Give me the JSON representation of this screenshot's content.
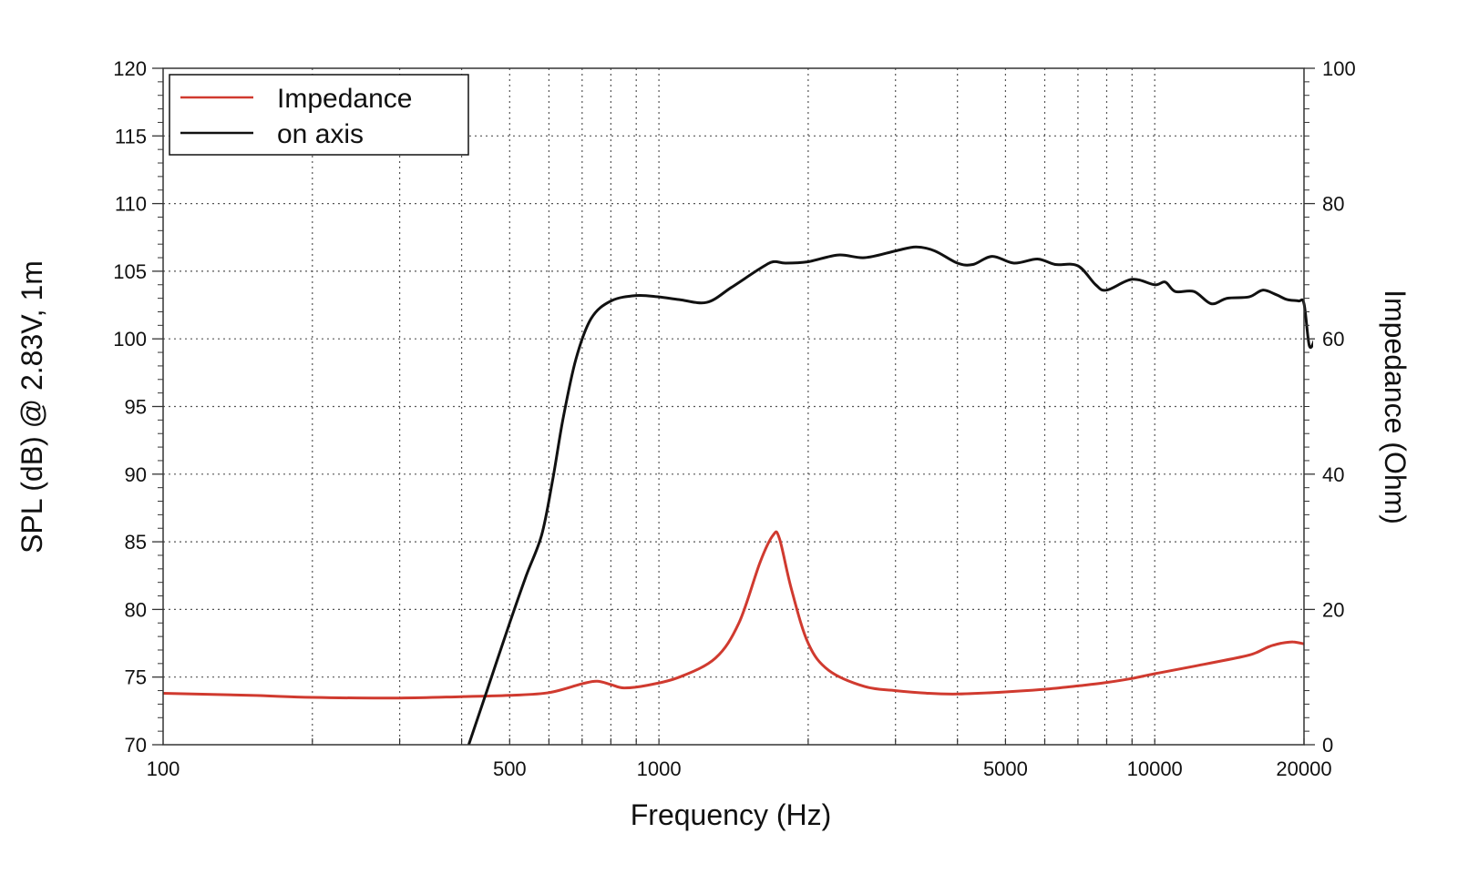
{
  "chart_data": {
    "type": "line",
    "xlabel": "Frequency (Hz)",
    "ylabel_left": "SPL (dB) @ 2.83V, 1m",
    "ylabel_right": "Impedance (Ohm)",
    "x_scale": "log",
    "xlim": [
      100,
      20000
    ],
    "ylim_left": [
      70,
      120
    ],
    "ylim_right": [
      0,
      100
    ],
    "grid": true,
    "legend_position": "top-left",
    "x_ticks": [
      {
        "value": 100,
        "label": "100"
      },
      {
        "value": 500,
        "label": "500"
      },
      {
        "value": 1000,
        "label": "1000"
      },
      {
        "value": 5000,
        "label": "5000"
      },
      {
        "value": 10000,
        "label": "10000"
      },
      {
        "value": 20000,
        "label": "20000"
      }
    ],
    "y_left_ticks": [
      "70",
      "75",
      "80",
      "85",
      "90",
      "95",
      "100",
      "105",
      "110",
      "115",
      "120"
    ],
    "y_right_ticks": [
      "0",
      "20",
      "40",
      "60",
      "80",
      "100"
    ],
    "series": [
      {
        "name": "Impedance",
        "axis": "right",
        "color": "#d03a2f",
        "points": [
          [
            100,
            7.6
          ],
          [
            150,
            7.3
          ],
          [
            200,
            7.0
          ],
          [
            300,
            6.9
          ],
          [
            400,
            7.1
          ],
          [
            500,
            7.3
          ],
          [
            600,
            7.7
          ],
          [
            700,
            9.0
          ],
          [
            750,
            9.4
          ],
          [
            800,
            8.9
          ],
          [
            850,
            8.4
          ],
          [
            950,
            8.8
          ],
          [
            1100,
            10.0
          ],
          [
            1300,
            12.8
          ],
          [
            1450,
            18.0
          ],
          [
            1600,
            27.0
          ],
          [
            1700,
            31.0
          ],
          [
            1750,
            30.5
          ],
          [
            1850,
            23.0
          ],
          [
            2000,
            15.0
          ],
          [
            2200,
            11.0
          ],
          [
            2600,
            8.6
          ],
          [
            3000,
            8.0
          ],
          [
            3500,
            7.6
          ],
          [
            4000,
            7.5
          ],
          [
            5000,
            7.8
          ],
          [
            6000,
            8.2
          ],
          [
            7000,
            8.7
          ],
          [
            8000,
            9.2
          ],
          [
            9000,
            9.8
          ],
          [
            10000,
            10.5
          ],
          [
            12000,
            11.6
          ],
          [
            15000,
            13.0
          ],
          [
            16000,
            13.6
          ],
          [
            17000,
            14.5
          ],
          [
            18000,
            15.0
          ],
          [
            19000,
            15.2
          ],
          [
            20000,
            14.9
          ]
        ]
      },
      {
        "name": "on axis",
        "axis": "left",
        "color": "#111111",
        "points": [
          [
            410,
            69.6
          ],
          [
            450,
            74.0
          ],
          [
            500,
            79.0
          ],
          [
            540,
            82.5
          ],
          [
            580,
            85.5
          ],
          [
            610,
            89.5
          ],
          [
            640,
            94.0
          ],
          [
            680,
            98.5
          ],
          [
            730,
            101.5
          ],
          [
            800,
            102.8
          ],
          [
            900,
            103.2
          ],
          [
            1000,
            103.1
          ],
          [
            1100,
            102.9
          ],
          [
            1250,
            102.7
          ],
          [
            1400,
            103.8
          ],
          [
            1600,
            105.2
          ],
          [
            1700,
            105.7
          ],
          [
            1800,
            105.6
          ],
          [
            2000,
            105.7
          ],
          [
            2300,
            106.2
          ],
          [
            2600,
            106.0
          ],
          [
            3000,
            106.5
          ],
          [
            3300,
            106.8
          ],
          [
            3600,
            106.5
          ],
          [
            4000,
            105.6
          ],
          [
            4300,
            105.5
          ],
          [
            4700,
            106.1
          ],
          [
            5200,
            105.6
          ],
          [
            5800,
            105.9
          ],
          [
            6300,
            105.5
          ],
          [
            7000,
            105.4
          ],
          [
            7600,
            104.0
          ],
          [
            8000,
            103.6
          ],
          [
            9000,
            104.4
          ],
          [
            10000,
            104.0
          ],
          [
            10500,
            104.2
          ],
          [
            11000,
            103.5
          ],
          [
            12000,
            103.5
          ],
          [
            13000,
            102.6
          ],
          [
            14000,
            103.0
          ],
          [
            15500,
            103.1
          ],
          [
            16500,
            103.6
          ],
          [
            17500,
            103.3
          ],
          [
            18500,
            102.9
          ],
          [
            19500,
            102.8
          ],
          [
            20000,
            102.6
          ],
          [
            20500,
            99.5
          ],
          [
            21000,
            99.9
          ]
        ]
      }
    ]
  }
}
